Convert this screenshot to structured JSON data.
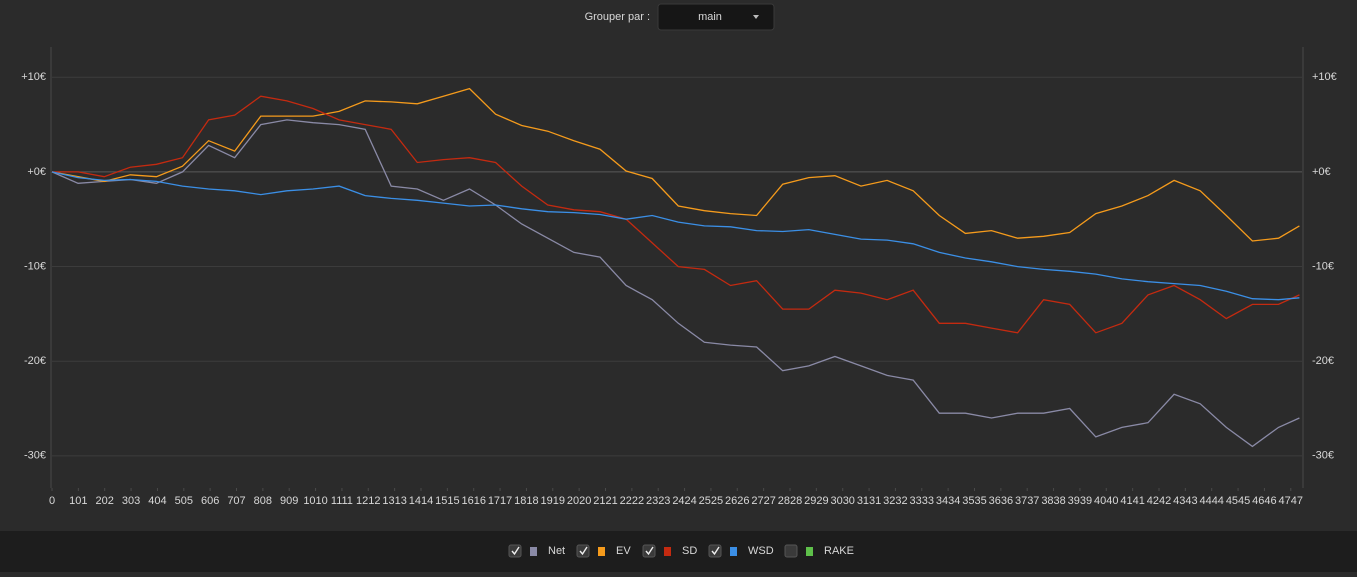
{
  "controls": {
    "group_by_label": "Grouper par :",
    "group_by_value": "main"
  },
  "chart_data": {
    "type": "line",
    "x": [
      0,
      100,
      200,
      300,
      400,
      500,
      600,
      700,
      800,
      900,
      1000,
      1100,
      1200,
      1300,
      1400,
      1500,
      1600,
      1700,
      1800,
      1900,
      2000,
      2100,
      2200,
      2300,
      2400,
      2500,
      2600,
      2700,
      2800,
      2900,
      3000,
      3100,
      3200,
      3300,
      3400,
      3500,
      3600,
      3700,
      3800,
      3900,
      4000,
      4100,
      4200,
      4300,
      4400,
      4500,
      4600,
      4700,
      4780
    ],
    "series": [
      {
        "name": "Net",
        "color": "#8a8aa6",
        "visible": true,
        "values": [
          0,
          -1.2,
          -1,
          -0.8,
          -1.2,
          0,
          2.8,
          1.5,
          5,
          5.5,
          5.2,
          5,
          4.5,
          -1.5,
          -1.8,
          -3,
          -1.8,
          -3.5,
          -5.5,
          -7,
          -8.5,
          -9,
          -12,
          -13.5,
          -16,
          -18,
          -18.3,
          -18.5,
          -21,
          -20.5,
          -19.5,
          -20.5,
          -21.5,
          -22,
          -25.5,
          -25.5,
          -26,
          -25.5,
          -25.5,
          -25,
          -28,
          -27,
          -26.5,
          -23.5,
          -24.5,
          -27,
          -29,
          -27,
          -26
        ]
      },
      {
        "name": "EV",
        "color": "#f59b1c",
        "visible": true,
        "values": [
          0,
          -0.5,
          -1,
          -0.3,
          -0.5,
          0.6,
          3.3,
          2.2,
          5.9,
          5.9,
          5.9,
          6.4,
          7.5,
          7.4,
          7.2,
          8,
          8.8,
          6.1,
          4.9,
          4.3,
          3.3,
          2.4,
          0.1,
          -0.7,
          -3.6,
          -4.1,
          -4.4,
          -4.6,
          -1.3,
          -0.6,
          -0.4,
          -1.5,
          -0.9,
          -2,
          -4.6,
          -6.5,
          -6.2,
          -7,
          -6.8,
          -6.4,
          -4.4,
          -3.6,
          -2.5,
          -0.9,
          -2,
          -4.6,
          -7.3,
          -7,
          -5.7
        ]
      },
      {
        "name": "SD",
        "color": "#c42a10",
        "visible": true,
        "values": [
          0,
          0,
          -0.5,
          0.5,
          0.8,
          1.5,
          5.5,
          6,
          8,
          7.5,
          6.7,
          5.5,
          5,
          4.5,
          1,
          1.3,
          1.5,
          1,
          -1.5,
          -3.5,
          -4,
          -4.2,
          -5,
          -7.5,
          -10,
          -10.3,
          -12,
          -11.5,
          -14.5,
          -14.5,
          -12.5,
          -12.8,
          -13.5,
          -12.5,
          -16,
          -16,
          -16.5,
          -17,
          -13.5,
          -14,
          -17,
          -16,
          -13,
          -12,
          -13.5,
          -15.5,
          -14,
          -14,
          -13
        ]
      },
      {
        "name": "WSD",
        "color": "#3b8fe6",
        "visible": true,
        "values": [
          0,
          -0.6,
          -0.9,
          -0.8,
          -1,
          -1.5,
          -1.8,
          -2,
          -2.4,
          -2,
          -1.8,
          -1.5,
          -2.5,
          -2.8,
          -3,
          -3.3,
          -3.6,
          -3.5,
          -3.9,
          -4.2,
          -4.3,
          -4.5,
          -5,
          -4.6,
          -5.3,
          -5.7,
          -5.8,
          -6.2,
          -6.3,
          -6.1,
          -6.6,
          -7.1,
          -7.2,
          -7.6,
          -8.5,
          -9.1,
          -9.5,
          -10,
          -10.3,
          -10.5,
          -10.8,
          -11.3,
          -11.6,
          -11.8,
          -12,
          -12.6,
          -13.4,
          -13.5,
          -13.3
        ]
      },
      {
        "name": "RAKE",
        "color": "#5ec04a",
        "visible": false
      }
    ],
    "xlim": [
      0,
      4790
    ],
    "xticks": [
      0,
      101,
      202,
      303,
      404,
      505,
      606,
      707,
      808,
      909,
      1010,
      1111,
      1212,
      1313,
      1414,
      1515,
      1616,
      1717,
      1818,
      1919,
      2020,
      2121,
      2222,
      2323,
      2424,
      2525,
      2626,
      2727,
      2828,
      2929,
      3030,
      3131,
      3232,
      3333,
      3434,
      3535,
      3636,
      3737,
      3838,
      3939,
      4040,
      4141,
      4242,
      4343,
      4444,
      4545,
      4646,
      4747
    ],
    "ylim": [
      -33.4,
      13.2
    ],
    "yticks": [
      {
        "value": 10,
        "label": "+10€"
      },
      {
        "value": 0,
        "label": "+0€"
      },
      {
        "value": -10,
        "label": "-10€"
      },
      {
        "value": -20,
        "label": "-20€"
      },
      {
        "value": -30,
        "label": "-30€"
      }
    ],
    "grid": true
  }
}
